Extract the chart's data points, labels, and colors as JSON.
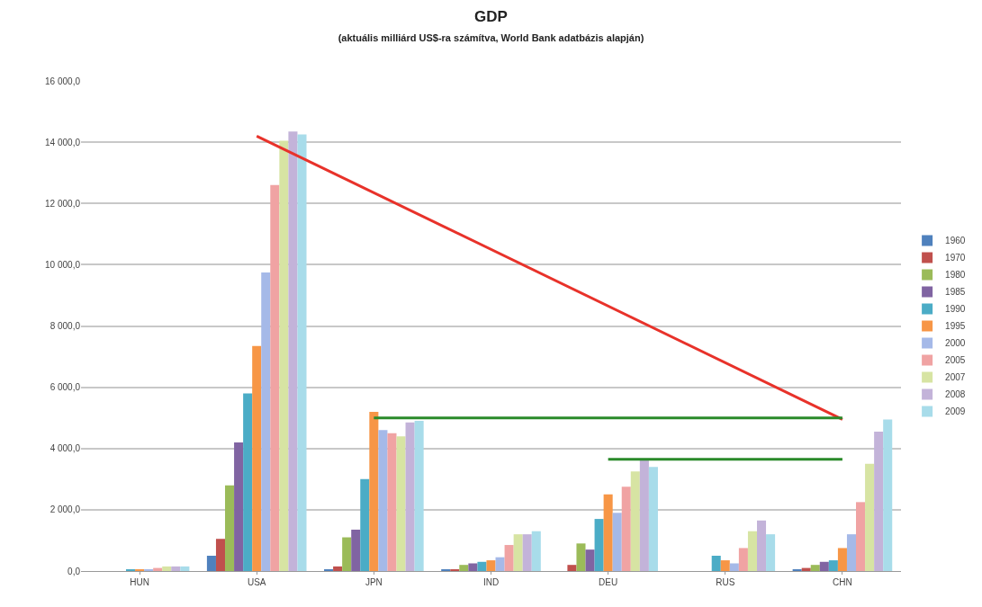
{
  "chart_data": {
    "type": "bar",
    "title": "GDP",
    "subtitle": "(aktuális milliárd US$-ra számítva, World Bank adatbázis alapján)",
    "categories": [
      "HUN",
      "USA",
      "JPN",
      "IND",
      "DEU",
      "RUS",
      "CHN"
    ],
    "ylim": [
      0,
      16000
    ],
    "yticks": [
      {
        "value": 0,
        "label": "0,0"
      },
      {
        "value": 2000,
        "label": "2 000,0"
      },
      {
        "value": 4000,
        "label": "4 000,0"
      },
      {
        "value": 6000,
        "label": "6 000,0"
      },
      {
        "value": 8000,
        "label": "8 000,0"
      },
      {
        "value": 10000,
        "label": "10 000,0"
      },
      {
        "value": 12000,
        "label": "12 000,0"
      },
      {
        "value": 14000,
        "label": "14 000,0"
      },
      {
        "value": 16000,
        "label": "16 000,0"
      }
    ],
    "grid": "y",
    "legend": "right",
    "series": [
      {
        "name": "1960",
        "color": "#4f81bd",
        "values": [
          null,
          500,
          50,
          50,
          null,
          null,
          50
        ]
      },
      {
        "name": "1970",
        "color": "#c0504d",
        "values": [
          null,
          1050,
          150,
          50,
          200,
          null,
          100
        ]
      },
      {
        "name": "1980",
        "color": "#9bbb59",
        "values": [
          null,
          2800,
          1100,
          200,
          900,
          null,
          200
        ]
      },
      {
        "name": "1985",
        "color": "#8064a2",
        "values": [
          null,
          4200,
          1350,
          250,
          700,
          null,
          300
        ]
      },
      {
        "name": "1990",
        "color": "#4bacc6",
        "values": [
          50,
          5800,
          3000,
          300,
          1700,
          500,
          350
        ]
      },
      {
        "name": "1995",
        "color": "#f79646",
        "values": [
          50,
          7350,
          5200,
          350,
          2500,
          350,
          750
        ]
      },
      {
        "name": "2000",
        "color": "#a5b9e8",
        "values": [
          50,
          9750,
          4600,
          450,
          1900,
          250,
          1200
        ]
      },
      {
        "name": "2005",
        "color": "#f0a3a3",
        "values": [
          100,
          12600,
          4500,
          850,
          2750,
          750,
          2250
        ]
      },
      {
        "name": "2007",
        "color": "#d7e4a3",
        "values": [
          150,
          14050,
          4400,
          1200,
          3250,
          1300,
          3500
        ]
      },
      {
        "name": "2008",
        "color": "#c3b3d9",
        "values": [
          150,
          14350,
          4850,
          1200,
          3650,
          1650,
          4550
        ]
      },
      {
        "name": "2009",
        "color": "#a8dcea",
        "values": [
          150,
          14250,
          4900,
          1300,
          3400,
          1200,
          4950
        ]
      },
      {
        "type": "line",
        "color": "#e8322a",
        "values": [
          null,
          14200,
          null,
          null,
          null,
          null,
          4950
        ]
      },
      {
        "type": "line",
        "color": "#2a8a2a",
        "values": [
          null,
          null,
          5000,
          null,
          null,
          null,
          5000
        ]
      },
      {
        "type": "line",
        "color": "#2a8a2a",
        "values": [
          null,
          null,
          null,
          null,
          3650,
          null,
          3650
        ]
      }
    ]
  }
}
